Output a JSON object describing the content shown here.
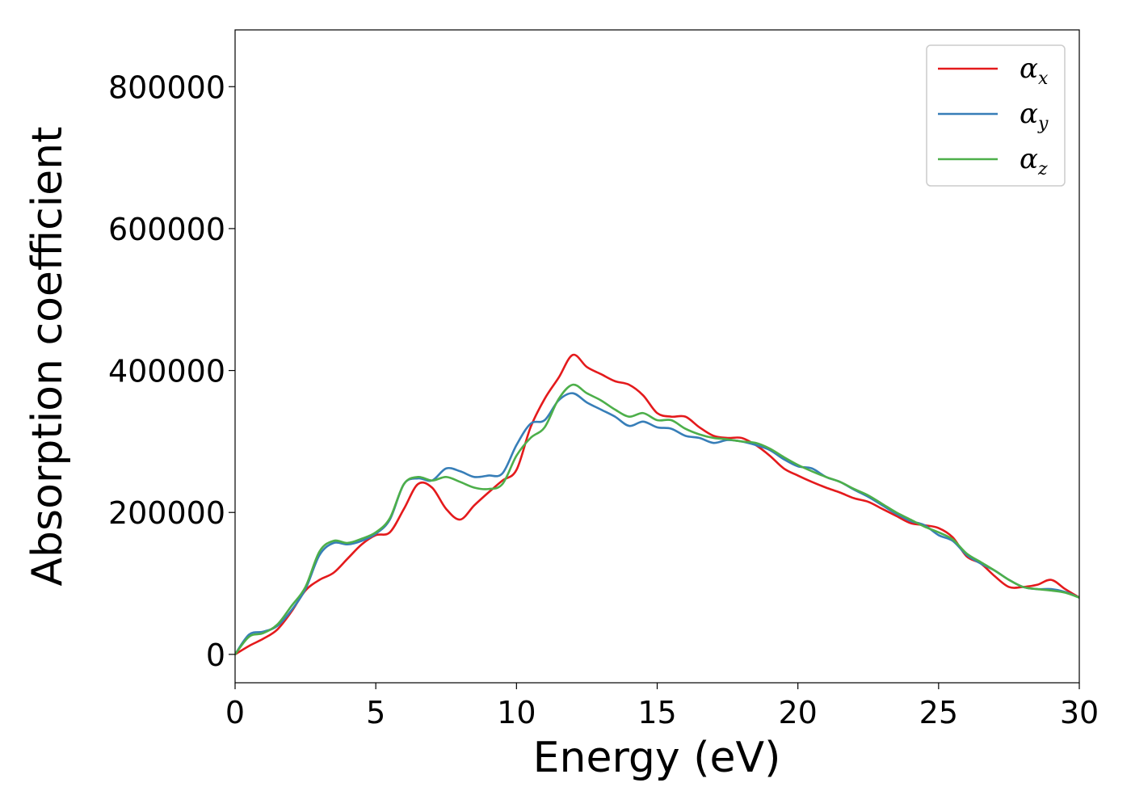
{
  "chart_data": {
    "type": "line",
    "xlabel": "Energy (eV)",
    "ylabel": "Absorption coefficient",
    "xlim": [
      0,
      30
    ],
    "ylim": [
      -40000,
      880000
    ],
    "xticks": [
      0,
      5,
      10,
      15,
      20,
      25,
      30
    ],
    "yticks": [
      0,
      200000,
      400000,
      600000,
      800000
    ],
    "xtick_labels": [
      "0",
      "5",
      "10",
      "15",
      "20",
      "25",
      "30"
    ],
    "ytick_labels": [
      "0",
      "200000",
      "400000",
      "600000",
      "800000"
    ],
    "grid": false,
    "legend_position": "top-right",
    "series": [
      {
        "name": "αx",
        "legend_base": "α",
        "legend_sub": "x",
        "color": "#e41a1c",
        "x": [
          0,
          0.5,
          1.0,
          1.5,
          2.0,
          2.5,
          3.0,
          3.5,
          4.0,
          4.5,
          5.0,
          5.5,
          6.0,
          6.5,
          7.0,
          7.5,
          8.0,
          8.5,
          9.0,
          9.5,
          10.0,
          10.5,
          11.0,
          11.5,
          12.0,
          12.5,
          13.0,
          13.5,
          14.0,
          14.5,
          15.0,
          15.5,
          16.0,
          16.5,
          17.0,
          17.5,
          18.0,
          18.5,
          19.0,
          19.5,
          20.0,
          20.5,
          21.0,
          21.5,
          22.0,
          22.5,
          23.0,
          23.5,
          24.0,
          24.5,
          25.0,
          25.5,
          26.0,
          26.5,
          27.0,
          27.5,
          28.0,
          28.5,
          29.0,
          29.5,
          30.0
        ],
        "y": [
          0,
          12000,
          22000,
          35000,
          60000,
          90000,
          105000,
          115000,
          135000,
          155000,
          168000,
          172000,
          205000,
          240000,
          235000,
          205000,
          190000,
          210000,
          228000,
          245000,
          260000,
          320000,
          360000,
          390000,
          422000,
          405000,
          395000,
          385000,
          380000,
          365000,
          340000,
          335000,
          335000,
          320000,
          308000,
          305000,
          305000,
          295000,
          280000,
          262000,
          252000,
          243000,
          235000,
          228000,
          220000,
          215000,
          205000,
          195000,
          185000,
          182000,
          178000,
          165000,
          138000,
          128000,
          110000,
          95000,
          95000,
          98000,
          105000,
          92000,
          80000
        ]
      },
      {
        "name": "αy",
        "legend_base": "α",
        "legend_sub": "y",
        "color": "#377eb8",
        "x": [
          0,
          0.5,
          1.0,
          1.5,
          2.0,
          2.5,
          3.0,
          3.5,
          4.0,
          4.5,
          5.0,
          5.5,
          6.0,
          6.5,
          7.0,
          7.5,
          8.0,
          8.5,
          9.0,
          9.5,
          10.0,
          10.5,
          11.0,
          11.5,
          12.0,
          12.5,
          13.0,
          13.5,
          14.0,
          14.5,
          15.0,
          15.5,
          16.0,
          16.5,
          17.0,
          17.5,
          18.0,
          18.5,
          19.0,
          19.5,
          20.0,
          20.5,
          21.0,
          21.5,
          22.0,
          22.5,
          23.0,
          23.5,
          24.0,
          24.5,
          25.0,
          25.5,
          26.0,
          26.5,
          27.0,
          27.5,
          28.0,
          28.5,
          29.0,
          29.5,
          30.0
        ],
        "y": [
          0,
          28000,
          32000,
          40000,
          62000,
          92000,
          140000,
          157000,
          155000,
          160000,
          170000,
          190000,
          240000,
          248000,
          245000,
          262000,
          258000,
          250000,
          252000,
          255000,
          295000,
          325000,
          330000,
          358000,
          368000,
          355000,
          345000,
          335000,
          322000,
          328000,
          320000,
          318000,
          308000,
          305000,
          298000,
          302000,
          300000,
          295000,
          288000,
          275000,
          265000,
          262000,
          250000,
          243000,
          232000,
          222000,
          210000,
          198000,
          188000,
          182000,
          168000,
          160000,
          140000,
          128000,
          118000,
          105000,
          95000,
          92000,
          92000,
          88000,
          80000
        ]
      },
      {
        "name": "αz",
        "legend_base": "α",
        "legend_sub": "z",
        "color": "#4daf4a",
        "x": [
          0,
          0.5,
          1.0,
          1.5,
          2.0,
          2.5,
          3.0,
          3.5,
          4.0,
          4.5,
          5.0,
          5.5,
          6.0,
          6.5,
          7.0,
          7.5,
          8.0,
          8.5,
          9.0,
          9.5,
          10.0,
          10.5,
          11.0,
          11.5,
          12.0,
          12.5,
          13.0,
          13.5,
          14.0,
          14.5,
          15.0,
          15.5,
          16.0,
          16.5,
          17.0,
          17.5,
          18.0,
          18.5,
          19.0,
          19.5,
          20.0,
          20.5,
          21.0,
          21.5,
          22.0,
          22.5,
          23.0,
          23.5,
          24.0,
          24.5,
          25.0,
          25.5,
          26.0,
          26.5,
          27.0,
          27.5,
          28.0,
          28.5,
          29.0,
          29.5,
          30.0
        ],
        "y": [
          0,
          25000,
          30000,
          42000,
          68000,
          95000,
          145000,
          160000,
          157000,
          163000,
          172000,
          192000,
          240000,
          250000,
          245000,
          250000,
          243000,
          235000,
          233000,
          240000,
          280000,
          305000,
          320000,
          360000,
          380000,
          368000,
          358000,
          345000,
          335000,
          340000,
          330000,
          330000,
          318000,
          310000,
          305000,
          303000,
          300000,
          298000,
          290000,
          278000,
          267000,
          258000,
          250000,
          243000,
          233000,
          224000,
          212000,
          200000,
          190000,
          180000,
          172000,
          162000,
          142000,
          130000,
          118000,
          105000,
          95000,
          92000,
          90000,
          87000,
          80000
        ]
      }
    ]
  }
}
